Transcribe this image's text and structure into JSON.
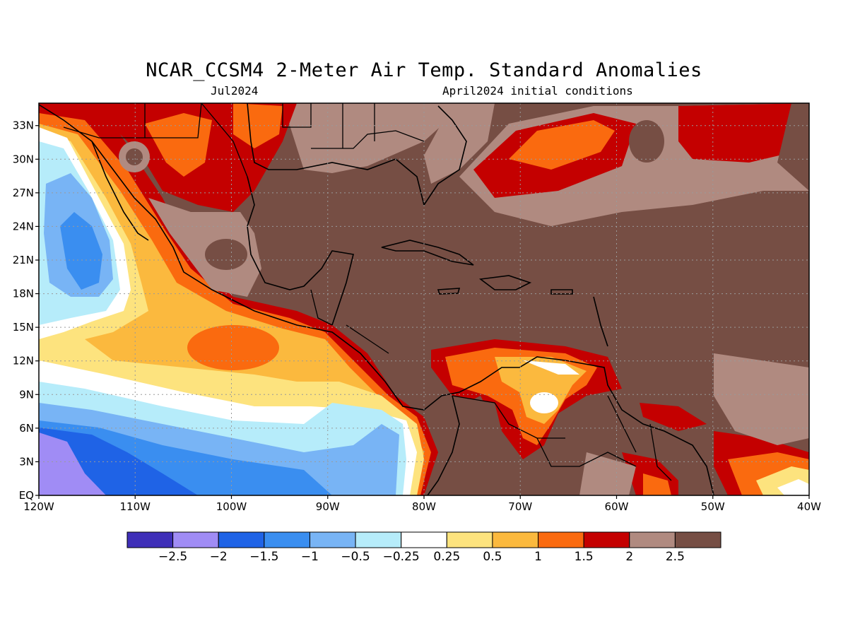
{
  "title": "NCAR_CCSM4 2-Meter Air Temp. Standard Anomalies",
  "valid_month": "Jul2024",
  "init_label": "April2024 initial conditions",
  "lat_labels": [
    "33N",
    "30N",
    "27N",
    "24N",
    "21N",
    "18N",
    "15N",
    "12N",
    "9N",
    "6N",
    "3N",
    "EQ"
  ],
  "lon_labels": [
    "120W",
    "110W",
    "100W",
    "90W",
    "80W",
    "70W",
    "60W",
    "50W",
    "40W"
  ],
  "colorbar": {
    "colors": [
      "#3f2fb8",
      "#a08cf5",
      "#1f63e6",
      "#3a8ef0",
      "#78b4f5",
      "#b6ecfa",
      "#ffffff",
      "#fde37e",
      "#fbb93e",
      "#fa6a0f",
      "#c40000",
      "#b08a80",
      "#764e44"
    ],
    "labels": [
      "-2.5",
      "-2",
      "-1.5",
      "-1",
      "-0.5",
      "-0.25",
      "0.25",
      "0.5",
      "1",
      "1.5",
      "2",
      "2.5"
    ]
  }
}
